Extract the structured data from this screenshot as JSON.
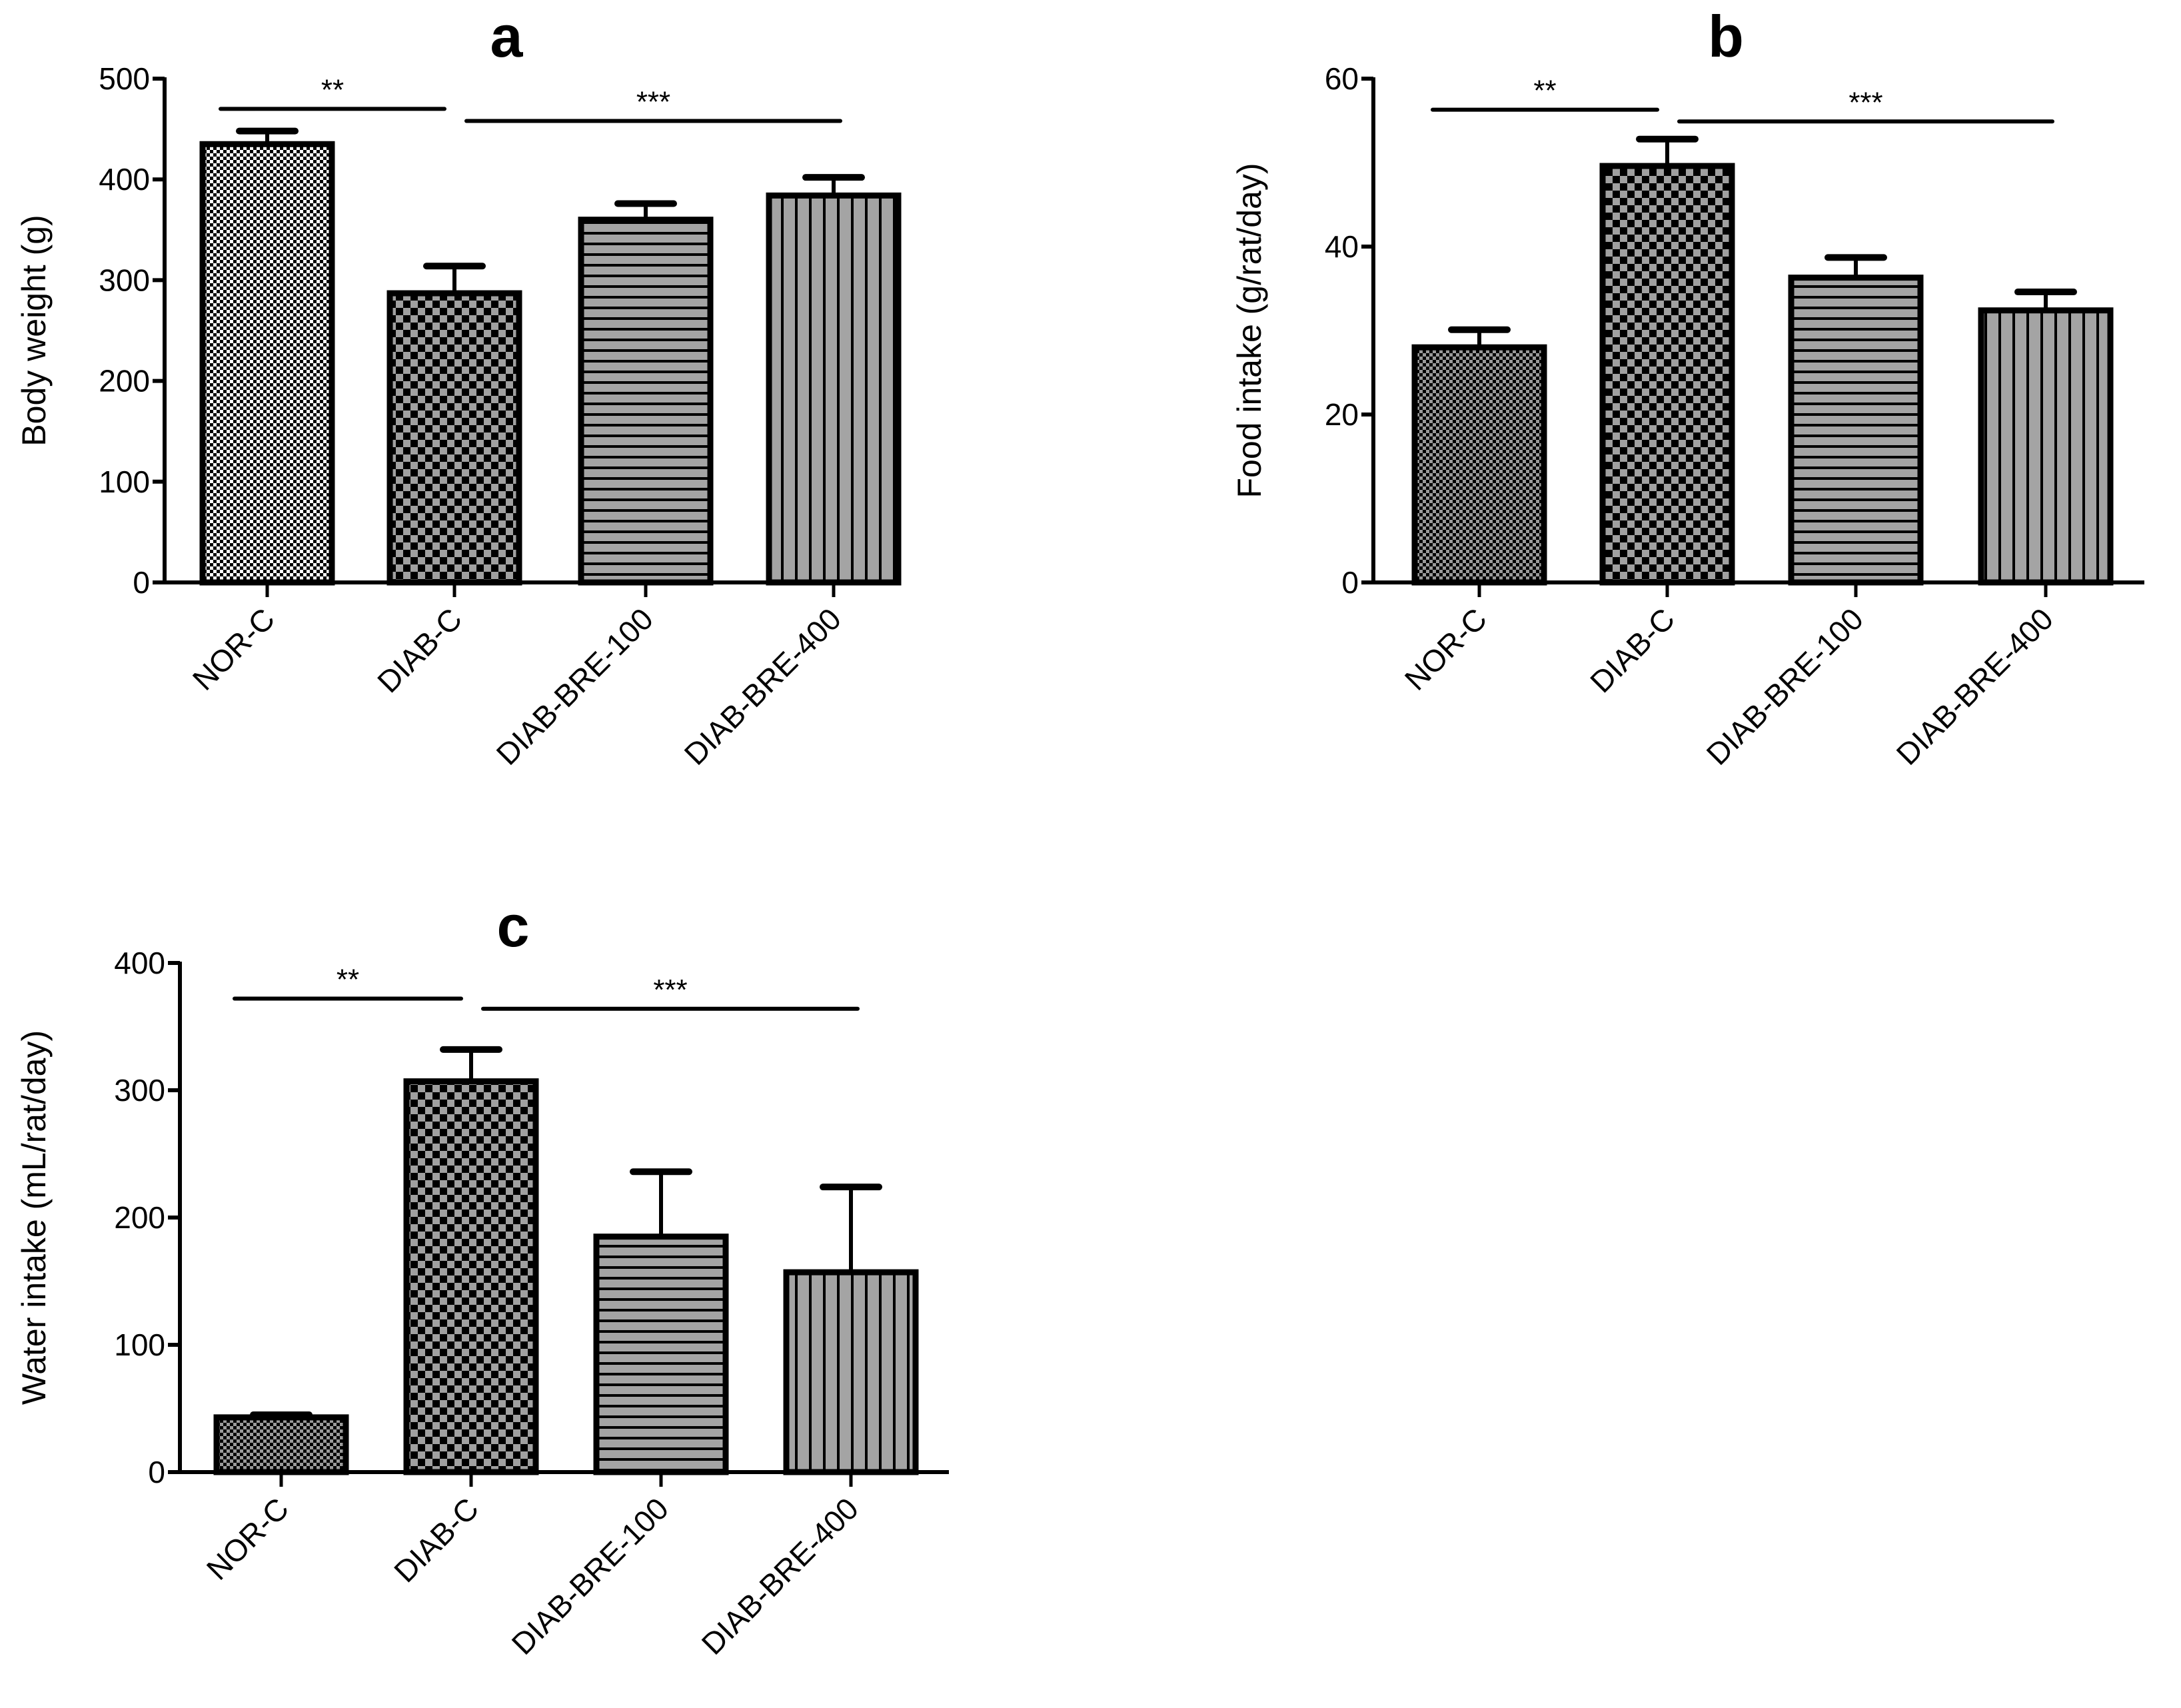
{
  "chart_data": [
    {
      "type": "bar",
      "title": "a",
      "xlabel": "",
      "ylabel": "Body weight (g)",
      "categories": [
        "NOR-C",
        "DIAB-C",
        "DIAB-BRE-100",
        "DIAB-BRE-400"
      ],
      "values": [
        435,
        287,
        360,
        384
      ],
      "errors": [
        13,
        27,
        16,
        18
      ],
      "ylim": [
        0,
        500
      ],
      "yticks": [
        "0",
        "100",
        "200",
        "300",
        "400",
        "500"
      ],
      "significance": [
        {
          "label": "**",
          "from": 0,
          "to": 1,
          "y": 470
        },
        {
          "label": "***",
          "from": 1,
          "to": 3,
          "y": 458
        }
      ]
    },
    {
      "type": "bar",
      "title": "b",
      "xlabel": "",
      "ylabel": "Food intake (g/rat/day)",
      "categories": [
        "NOR-C",
        "DIAB-C",
        "DIAB-BRE-100",
        "DIAB-BRE-400"
      ],
      "values": [
        28,
        49.6,
        36.3,
        32.4
      ],
      "errors": [
        2.1,
        3.2,
        2.4,
        2.2
      ],
      "ylim": [
        0,
        60
      ],
      "yticks": [
        "0",
        "20",
        "40",
        "60"
      ],
      "significance": [
        {
          "label": "**",
          "from": 0,
          "to": 1,
          "y": 56.3
        },
        {
          "label": "***",
          "from": 1,
          "to": 3,
          "y": 54.9
        }
      ]
    },
    {
      "type": "bar",
      "title": "c",
      "xlabel": "",
      "ylabel": "Water intake (mL/rat/day)",
      "categories": [
        "NOR-C",
        "DIAB-C",
        "DIAB-BRE-100",
        "DIAB-BRE-400"
      ],
      "values": [
        43,
        307,
        185,
        157
      ],
      "errors": [
        2,
        25,
        51,
        67
      ],
      "ylim": [
        0,
        400
      ],
      "yticks": [
        "0",
        "100",
        "200",
        "300",
        "400"
      ],
      "significance": [
        {
          "label": "**",
          "from": 0,
          "to": 1,
          "y": 372
        },
        {
          "label": "***",
          "from": 1,
          "to": 3,
          "y": 364
        }
      ]
    }
  ]
}
